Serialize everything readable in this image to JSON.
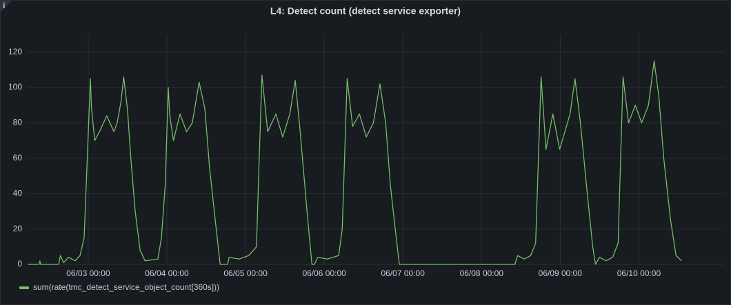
{
  "chart_data": {
    "type": "line",
    "title": "L4: Detect count (detect service exporter)",
    "x": [
      "06/02 05:30",
      "06/02 09:00",
      "06/02 09:15",
      "06/02 09:30",
      "06/02 15:00",
      "06/02 15:30",
      "06/02 16:30",
      "06/02 18:00",
      "06/02 20:00",
      "06/02 21:30",
      "06/02 22:45",
      "06/02 23:30",
      "06/03 00:40",
      "06/03 01:00",
      "06/03 02:00",
      "06/03 03:40",
      "06/03 05:40",
      "06/03 07:50",
      "06/03 08:50",
      "06/03 10:00",
      "06/03 10:50",
      "06/03 12:00",
      "06/03 13:00",
      "06/03 14:20",
      "06/03 15:50",
      "06/03 17:20",
      "06/03 21:15",
      "06/03 22:20",
      "06/03 23:30",
      "06/04 00:25",
      "06/04 00:50",
      "06/04 02:00",
      "06/04 04:00",
      "06/04 06:00",
      "06/04 07:45",
      "06/04 09:50",
      "06/04 11:35",
      "06/04 13:00",
      "06/04 14:45",
      "06/04 16:15",
      "06/04 18:30",
      "06/04 19:00",
      "06/04 22:00",
      "06/05 01:00",
      "06/05 03:20",
      "06/05 04:00",
      "06/05 05:00",
      "06/05 06:45",
      "06/05 09:15",
      "06/05 11:20",
      "06/05 13:30",
      "06/05 15:10",
      "06/05 16:40",
      "06/05 18:45",
      "06/05 20:15",
      "06/05 21:00",
      "06/05 22:00",
      "06/06 01:00",
      "06/06 04:25",
      "06/06 05:30",
      "06/06 07:00",
      "06/06 08:40",
      "06/06 10:45",
      "06/06 12:50",
      "06/06 15:00",
      "06/06 17:00",
      "06/06 18:45",
      "06/06 20:10",
      "06/06 21:40",
      "06/06 22:55",
      "06/08 10:10",
      "06/08 11:00",
      "06/08 13:00",
      "06/08 15:00",
      "06/08 16:30",
      "06/08 18:10",
      "06/08 19:40",
      "06/08 21:45",
      "06/08 23:50",
      "06/09 03:00",
      "06/09 04:30",
      "06/09 06:10",
      "06/09 08:15",
      "06/09 09:55",
      "06/09 10:45",
      "06/09 12:00",
      "06/09 14:00",
      "06/09 16:00",
      "06/09 17:40",
      "06/09 19:10",
      "06/09 20:50",
      "06/09 22:55",
      "06/10 00:50",
      "06/10 02:55",
      "06/10 04:40",
      "06/10 06:05",
      "06/10 07:35",
      "06/10 09:40",
      "06/10 11:20",
      "06/10 13:00"
    ],
    "series": [
      {
        "name": "sum(rate(tmc_detect_service_object_count[360s]))",
        "color": "#73bf69",
        "values": [
          0,
          0,
          2,
          0,
          0,
          5,
          1,
          4,
          2,
          5,
          15,
          50,
          105,
          88,
          70,
          76,
          84,
          75,
          80,
          92,
          106,
          87,
          60,
          30,
          8,
          2,
          3,
          15,
          45,
          100,
          85,
          70,
          85,
          75,
          80,
          103,
          88,
          55,
          25,
          0,
          0,
          4,
          3,
          5,
          10,
          50,
          107,
          75,
          85,
          72,
          85,
          104,
          75,
          30,
          0,
          0,
          4,
          3,
          5,
          20,
          105,
          78,
          85,
          72,
          80,
          102,
          80,
          45,
          20,
          0,
          0,
          5,
          3,
          5,
          12,
          106,
          65,
          85,
          65,
          85,
          105,
          80,
          40,
          10,
          0,
          4,
          2,
          4,
          12,
          106,
          80,
          90,
          80,
          90,
          115,
          95,
          60,
          25,
          5,
          2
        ]
      }
    ],
    "xlim": [
      "06/02 05:30",
      "06/11 02:00"
    ],
    "xticks": [
      "06/03 00:00",
      "06/04 00:00",
      "06/05 00:00",
      "06/06 00:00",
      "06/07 00:00",
      "06/08 00:00",
      "06/09 00:00",
      "06/10 00:00"
    ],
    "ylim": [
      0,
      130
    ],
    "yticks": [
      0,
      20,
      40,
      60,
      80,
      100,
      120
    ],
    "grid": true
  }
}
